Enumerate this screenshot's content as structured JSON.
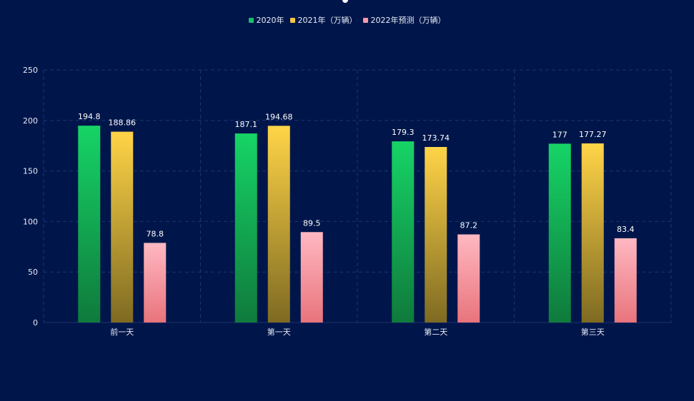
{
  "colors": {
    "background": "#00164a",
    "grid": "#1e3370",
    "axis_text": "#e6eaf5",
    "label_text": "#ffffff"
  },
  "chart_data": {
    "type": "bar",
    "categories": [
      "前一天",
      "第一天",
      "第二天",
      "第三天"
    ],
    "series": [
      {
        "name": "2020年",
        "values": [
          194.8,
          187.1,
          179.3,
          177
        ],
        "labels": [
          "194.8",
          "187.1",
          "179.3",
          "177"
        ],
        "color_top": "#16d466",
        "color_bottom": "#0f7a3c",
        "swatch": "#18c06a"
      },
      {
        "name": "2021年（万辆）",
        "values": [
          188.86,
          194.68,
          173.74,
          177.27
        ],
        "labels": [
          "188.86",
          "194.68",
          "173.74",
          "177.27"
        ],
        "color_top": "#ffd447",
        "color_bottom": "#7e6a22",
        "swatch": "#f5c842"
      },
      {
        "name": "2022年预测（万辆）",
        "values": [
          78.8,
          89.5,
          87.2,
          83.4
        ],
        "labels": [
          "78.8",
          "89.5",
          "87.2",
          "83.4"
        ],
        "color_top": "#ffb8c2",
        "color_bottom": "#e8747c",
        "swatch": "#f59aa6"
      }
    ],
    "ylim": [
      0,
      250
    ],
    "yticks": [
      "0",
      "50",
      "100",
      "150",
      "200",
      "250"
    ],
    "grid": true,
    "legend_position": "top-center",
    "title": "",
    "xlabel": "",
    "ylabel": ""
  }
}
